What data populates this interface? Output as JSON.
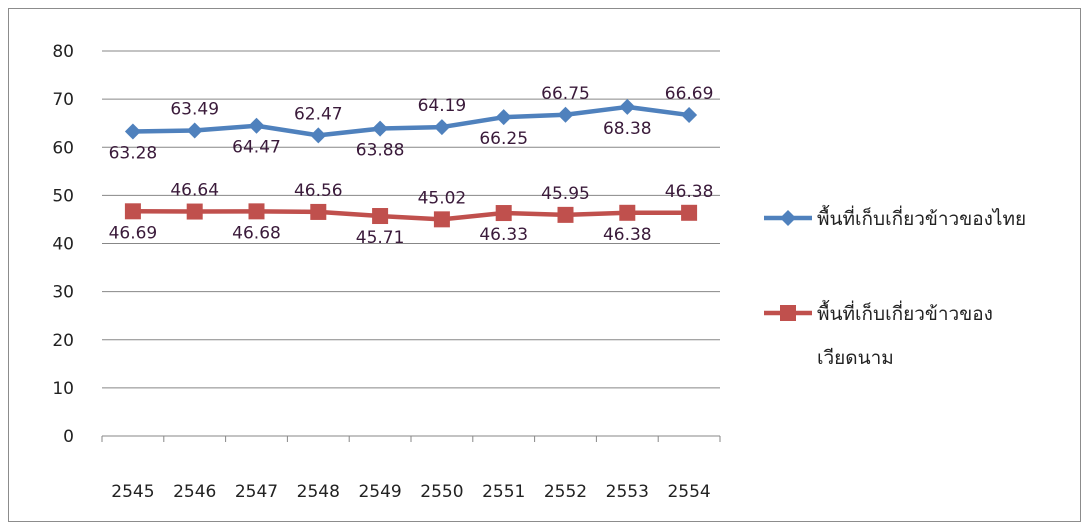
{
  "chart_data": {
    "type": "line",
    "title": "",
    "xlabel": "",
    "ylabel": "",
    "categories": [
      "2545",
      "2546",
      "2547",
      "2548",
      "2549",
      "2550",
      "2551",
      "2552",
      "2553",
      "2554"
    ],
    "ylim": [
      0,
      80
    ],
    "yticks": [
      0,
      10,
      20,
      30,
      40,
      50,
      60,
      70,
      80
    ],
    "grid": "horizontal",
    "legend_position": "right",
    "series": [
      {
        "name_lines": [
          "พื้นที่เก็บเกี่ยวข้าวของไทย"
        ],
        "color": "#4F81BD",
        "marker": "diamond",
        "values": [
          63.28,
          63.49,
          64.47,
          62.47,
          63.88,
          64.19,
          66.25,
          66.75,
          68.38,
          66.69
        ],
        "labels": [
          "63.28",
          "63.49",
          "64.47",
          "62.47",
          "63.88",
          "64.19",
          "66.25",
          "66.75",
          "68.38",
          "66.69"
        ],
        "label_pos": [
          "below",
          "above",
          "below",
          "above",
          "below",
          "above",
          "below",
          "above",
          "below",
          "above"
        ]
      },
      {
        "name_lines": [
          "พื้นที่เก็บเกี่ยวข้าวของ",
          "เวียดนาม"
        ],
        "color": "#C0504D",
        "marker": "square",
        "values": [
          46.69,
          46.64,
          46.68,
          46.56,
          45.71,
          45.02,
          46.33,
          45.95,
          46.38,
          46.38
        ],
        "labels": [
          "46.69",
          "46.64",
          "46.68",
          "46.56",
          "45.71",
          "45.02",
          "46.33",
          "45.95",
          "46.38",
          "46.38"
        ],
        "label_pos": [
          "below",
          "above",
          "below",
          "above",
          "below",
          "above",
          "below",
          "above",
          "below",
          "above"
        ]
      }
    ]
  }
}
